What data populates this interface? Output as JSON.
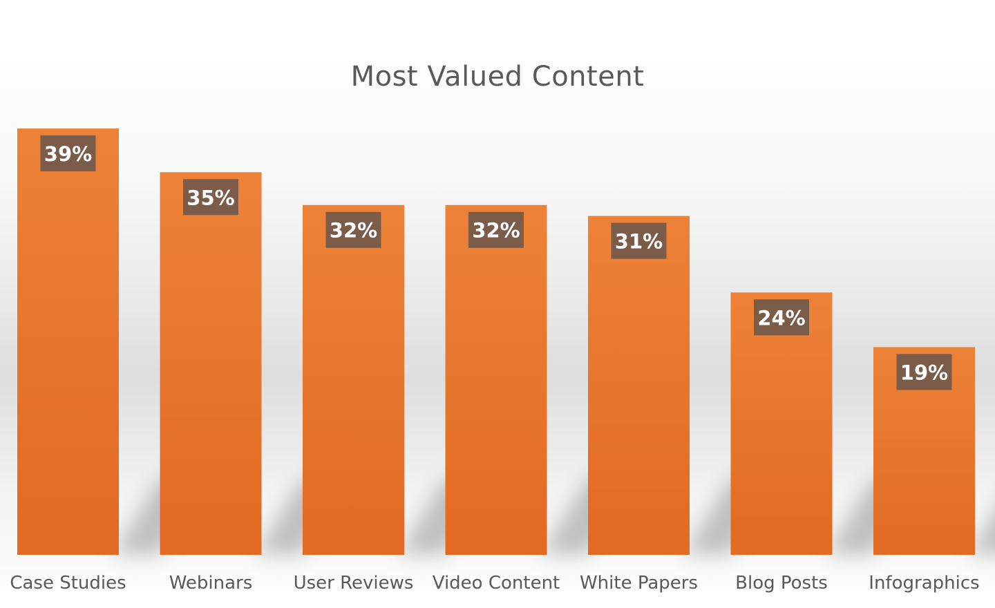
{
  "chart_data": {
    "type": "bar",
    "title": "Most Valued Content",
    "categories": [
      "Case Studies",
      "Webinars",
      "User Reviews",
      "Video Content",
      "White Papers",
      "Blog Posts",
      "Infographics"
    ],
    "values": [
      39,
      35,
      32,
      32,
      31,
      24,
      19
    ],
    "data_labels": [
      "39%",
      "35%",
      "32%",
      "32%",
      "31%",
      "24%",
      "19%"
    ],
    "value_unit": "%",
    "ylim": [
      0,
      39
    ],
    "grid": false,
    "legend": "none",
    "colors": {
      "bar_top": "#ec8238",
      "bar_bottom": "#e26a22",
      "label_box": "#7a5c49",
      "label_text": "#ffffff",
      "category_text": "#595959"
    }
  }
}
